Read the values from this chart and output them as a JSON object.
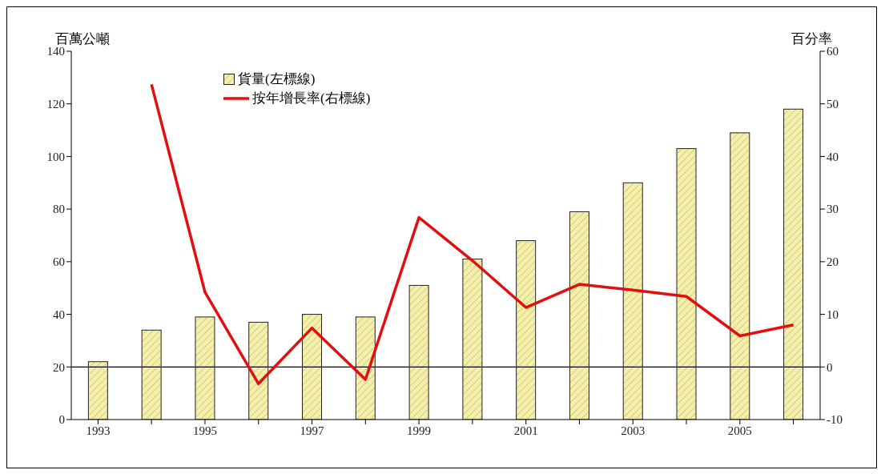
{
  "chart_data": {
    "type": "bar",
    "ylabel": "百萬公噸",
    "y2label": "百分率",
    "categories": [
      "1993",
      null,
      "1995",
      null,
      "1997",
      null,
      "1999",
      null,
      "2001",
      null,
      "2003",
      null,
      "2005",
      null
    ],
    "series": [
      {
        "name": "貨量(左標線)",
        "color": "#f5efa8",
        "values": [
          22,
          34,
          39,
          37,
          40,
          39,
          51,
          61,
          68,
          79,
          90,
          103,
          109,
          118
        ]
      },
      {
        "name": "按年增長率(右標線)",
        "type": "line",
        "axis": "y2",
        "color": "#e01010",
        "values": [
          null,
          53.7,
          14.2,
          -3.2,
          7.4,
          -2.4,
          28.4,
          20.2,
          11.3,
          15.7,
          14.6,
          13.4,
          5.9,
          8
        ]
      }
    ],
    "ylim": [
      0,
      140
    ],
    "yticks": [
      0,
      20,
      40,
      60,
      80,
      100,
      120,
      140
    ],
    "y2lim": [
      -10,
      60
    ],
    "y2ticks": [
      -10,
      0,
      10,
      20,
      30,
      40,
      50,
      60
    ],
    "ref_lines": [
      {
        "axis": "y2",
        "value": 0,
        "color": "#000000"
      }
    ],
    "legend": "top left",
    "grid": false,
    "marker": "none",
    "line_style": "solid"
  }
}
